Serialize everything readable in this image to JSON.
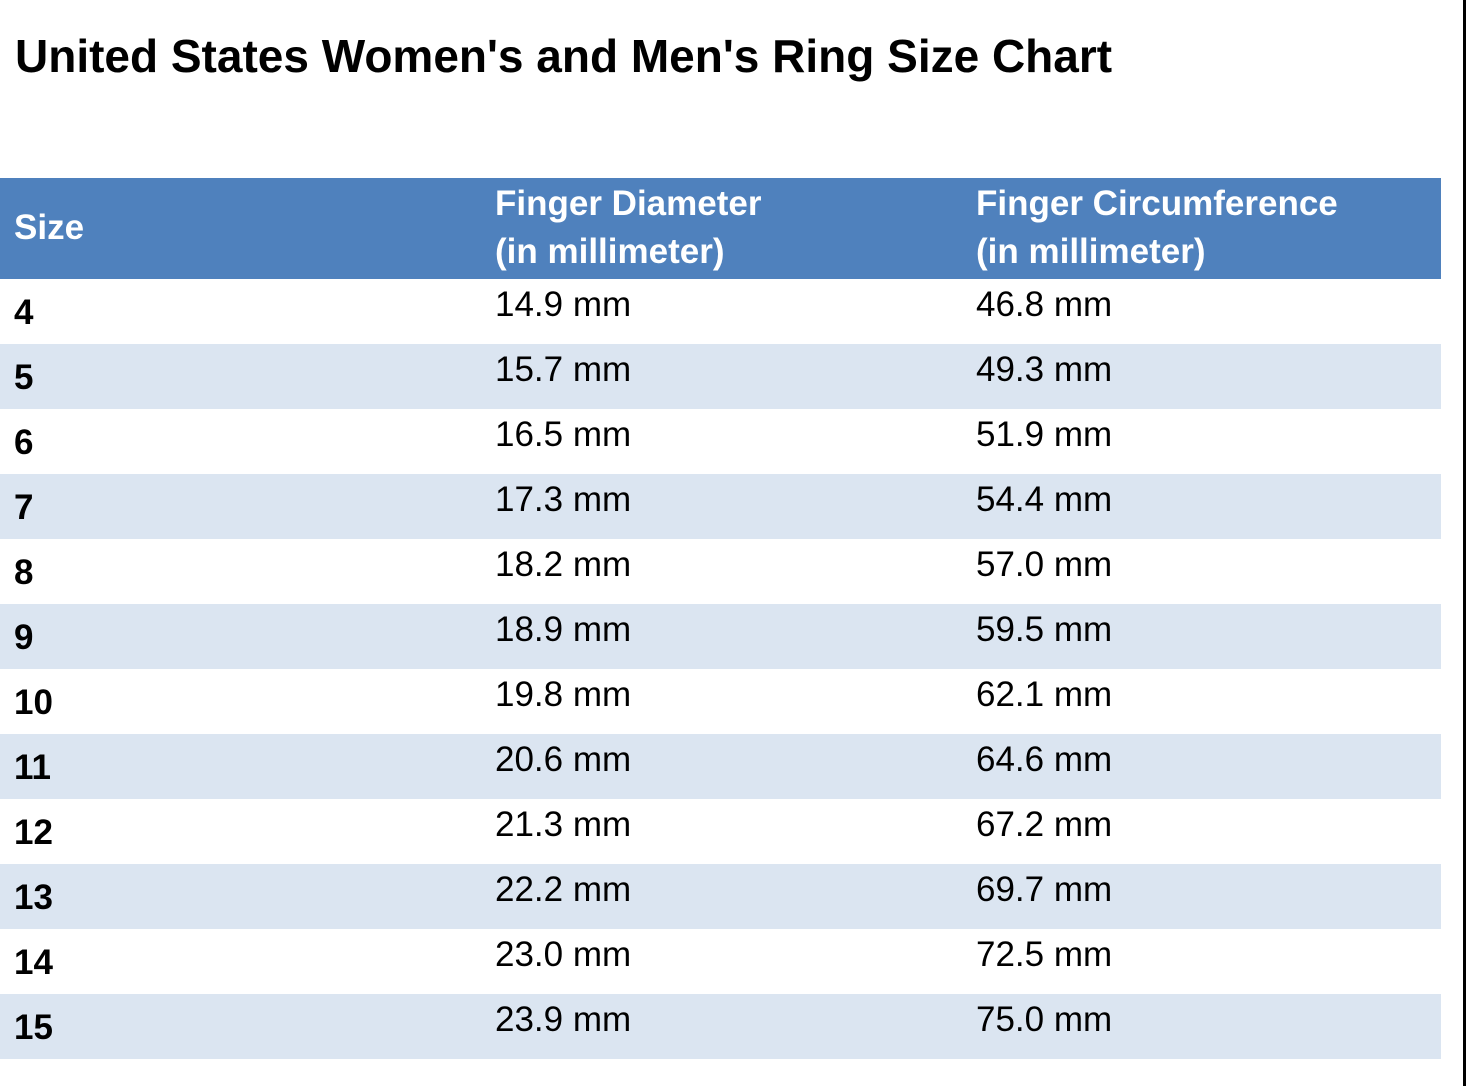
{
  "title": "United States Women's and Men's Ring Size Chart",
  "table": {
    "headers": {
      "size": "Size",
      "diameter_line1": "Finger Diameter",
      "diameter_line2": "(in millimeter)",
      "circumference_line1": "Finger Circumference",
      "circumference_line2": "(in millimeter)"
    },
    "rows": [
      {
        "size": "4",
        "diameter": "14.9 mm",
        "circumference": "46.8 mm"
      },
      {
        "size": "5",
        "diameter": "15.7 mm",
        "circumference": "49.3 mm"
      },
      {
        "size": "6",
        "diameter": "16.5 mm",
        "circumference": "51.9 mm"
      },
      {
        "size": "7",
        "diameter": "17.3 mm",
        "circumference": "54.4 mm"
      },
      {
        "size": "8",
        "diameter": "18.2 mm",
        "circumference": "57.0 mm"
      },
      {
        "size": "9",
        "diameter": "18.9 mm",
        "circumference": "59.5 mm"
      },
      {
        "size": "10",
        "diameter": "19.8 mm",
        "circumference": "62.1 mm"
      },
      {
        "size": "11",
        "diameter": "20.6 mm",
        "circumference": "64.6 mm"
      },
      {
        "size": "12",
        "diameter": "21.3 mm",
        "circumference": "67.2 mm"
      },
      {
        "size": "13",
        "diameter": "22.2 mm",
        "circumference": "69.7 mm"
      },
      {
        "size": "14",
        "diameter": "23.0 mm",
        "circumference": "72.5 mm"
      },
      {
        "size": "15",
        "diameter": "23.9 mm",
        "circumference": "75.0 mm"
      }
    ]
  },
  "colors": {
    "header_background": "#4f81bd",
    "header_text": "#ffffff",
    "band_row": "#dbe5f1",
    "plain_row": "#ffffff"
  }
}
